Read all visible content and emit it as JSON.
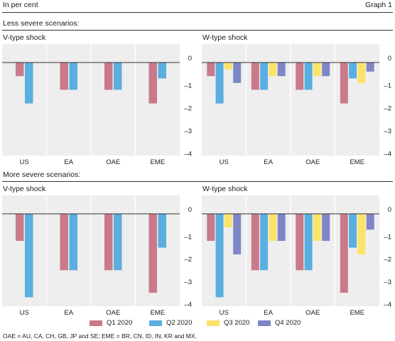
{
  "header": {
    "unit": "In per cent",
    "graph_label": "Graph 1"
  },
  "sections": [
    {
      "label": "Less severe scenarios:"
    },
    {
      "label": "More severe scenarios:"
    }
  ],
  "legend": [
    {
      "label": "Q1 2020",
      "color": "#c97a8a"
    },
    {
      "label": "Q2 2020",
      "color": "#5aaee0"
    },
    {
      "label": "Q3 2020",
      "color": "#fbe36a"
    },
    {
      "label": "Q4 2020",
      "color": "#7f86c7"
    }
  ],
  "footnote": "OAE = AU, CA, CH, GB, JP and SE; EME = BR, CN, ID, IN, KR and MX.",
  "chart_data": [
    {
      "type": "bar",
      "title": "V-type shock",
      "scenario": "Less severe scenarios:",
      "categories": [
        "US",
        "EA",
        "OAE",
        "EME"
      ],
      "ylim": [
        -4,
        0
      ],
      "yticks": [
        "0",
        "–1",
        "–2",
        "–3",
        "–4"
      ],
      "grid": "vertical",
      "series": [
        {
          "name": "Q1 2020",
          "values": [
            -0.6,
            -1.2,
            -1.2,
            -1.8
          ]
        },
        {
          "name": "Q2 2020",
          "values": [
            -1.8,
            -1.2,
            -1.2,
            -0.7
          ]
        }
      ]
    },
    {
      "type": "bar",
      "title": "W-type shock",
      "scenario": "Less severe scenarios:",
      "categories": [
        "US",
        "EA",
        "OAE",
        "EME"
      ],
      "ylim": [
        -4,
        0
      ],
      "yticks": [
        "0",
        "–1",
        "–2",
        "–3",
        "–4"
      ],
      "grid": "vertical",
      "series": [
        {
          "name": "Q1 2020",
          "values": [
            -0.6,
            -1.2,
            -1.2,
            -1.8
          ]
        },
        {
          "name": "Q2 2020",
          "values": [
            -1.8,
            -1.2,
            -1.2,
            -0.7
          ]
        },
        {
          "name": "Q3 2020",
          "values": [
            -0.3,
            -0.6,
            -0.6,
            -0.9
          ]
        },
        {
          "name": "Q4 2020",
          "values": [
            -0.9,
            -0.6,
            -0.6,
            -0.4
          ]
        }
      ]
    },
    {
      "type": "bar",
      "title": "V-type shock",
      "scenario": "More severe scenarios:",
      "categories": [
        "US",
        "EA",
        "OAE",
        "EME"
      ],
      "ylim": [
        -4,
        0
      ],
      "yticks": [
        "0",
        "–1",
        "–2",
        "–3",
        "–4"
      ],
      "grid": "vertical",
      "series": [
        {
          "name": "Q1 2020",
          "values": [
            -1.2,
            -2.5,
            -2.5,
            -3.5
          ]
        },
        {
          "name": "Q2 2020",
          "values": [
            -3.7,
            -2.5,
            -2.5,
            -1.5
          ]
        }
      ]
    },
    {
      "type": "bar",
      "title": "W-type shock",
      "scenario": "More severe scenarios:",
      "categories": [
        "US",
        "EA",
        "OAE",
        "EME"
      ],
      "ylim": [
        -4,
        0
      ],
      "yticks": [
        "0",
        "–1",
        "–2",
        "–3",
        "–4"
      ],
      "grid": "vertical",
      "series": [
        {
          "name": "Q1 2020",
          "values": [
            -1.2,
            -2.5,
            -2.5,
            -3.5
          ]
        },
        {
          "name": "Q2 2020",
          "values": [
            -3.7,
            -2.5,
            -2.5,
            -1.5
          ]
        },
        {
          "name": "Q3 2020",
          "values": [
            -0.6,
            -1.2,
            -1.2,
            -1.8
          ]
        },
        {
          "name": "Q4 2020",
          "values": [
            -1.8,
            -1.2,
            -1.2,
            -0.7
          ]
        }
      ]
    }
  ]
}
